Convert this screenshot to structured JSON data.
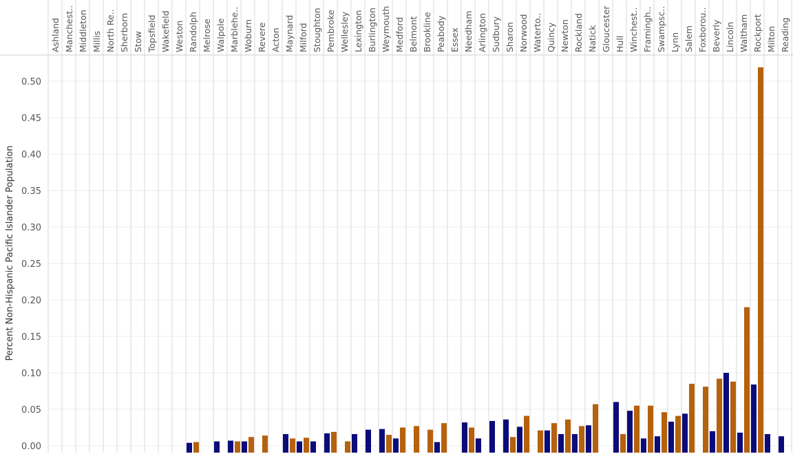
{
  "chart_data": {
    "type": "bar",
    "title": "",
    "xlabel": "",
    "ylabel": "Percent Non-Hispanic Pacific Islander Population",
    "ylim": [
      0,
      0.53
    ],
    "yticks": [
      0.0,
      0.05,
      0.1,
      0.15,
      0.2,
      0.25,
      0.3,
      0.35,
      0.4,
      0.45,
      0.5
    ],
    "ytick_labels": [
      "0.00",
      "0.05",
      "0.10",
      "0.15",
      "0.20",
      "0.25",
      "0.30",
      "0.35",
      "0.40",
      "0.45",
      "0.50"
    ],
    "grid": true,
    "legend": "none",
    "colors": [
      "#0b0b7a",
      "#b5610d"
    ],
    "categories": [
      "Ashland",
      "Manchest..",
      "Middleton",
      "Millis",
      "North Re..",
      "Sherborn",
      "Stow",
      "Topsfield",
      "Wakefield",
      "Weston",
      "Randolph",
      "Melrose",
      "Walpole",
      "Marblehe..",
      "Woburn",
      "Revere",
      "Acton",
      "Maynard",
      "Milford",
      "Stoughton",
      "Pembroke",
      "Wellesley",
      "Lexington",
      "Burlington",
      "Weymouth",
      "Medford",
      "Belmont",
      "Brookline",
      "Peabody",
      "Essex",
      "Needham",
      "Arlington",
      "Sudbury",
      "Sharon",
      "Norwood",
      "Waterto..",
      "Quincy",
      "Newton",
      "Rockland",
      "Natick",
      "Gloucester",
      "Hull",
      "Winchest..",
      "Framingh..",
      "Swampsc..",
      "Lynn",
      "Salem",
      "Foxborou..",
      "Beverly",
      "Lincoln",
      "Waltham",
      "Rockport",
      "Milton",
      "Reading"
    ],
    "series": [
      {
        "values": [
          0,
          0,
          0,
          0,
          0,
          0,
          0,
          0,
          0,
          0,
          0.004,
          0,
          0.006,
          0.007,
          0.006,
          0,
          0,
          0.016,
          0.006,
          0.006,
          0.017,
          0,
          0.016,
          0.022,
          0.023,
          0.01,
          0,
          0,
          0.005,
          0,
          0.032,
          0.01,
          0.034,
          0.036,
          0.026,
          0,
          0.021,
          0.016,
          0.016,
          0.028,
          0,
          0.06,
          0.048,
          0.01,
          0.013,
          0.033,
          0.044,
          0,
          0.02,
          0.1,
          0.018,
          0.084,
          0.016,
          0.013
        ]
      },
      {
        "values": [
          0,
          0,
          0,
          0,
          0,
          0,
          0,
          0,
          0,
          0,
          0.005,
          0,
          0,
          0.006,
          0.012,
          0.014,
          0,
          0.01,
          0.011,
          0,
          0.019,
          0.006,
          0,
          0,
          0.015,
          0.025,
          0.027,
          0.022,
          0.031,
          0,
          0.025,
          0,
          0,
          0.012,
          0.041,
          0.021,
          0.031,
          0.036,
          0.027,
          0.057,
          0,
          0.016,
          0.055,
          0.055,
          0.046,
          0.041,
          0.085,
          0.081,
          0.092,
          0.088,
          0.19,
          0.519,
          0,
          0
        ]
      }
    ]
  }
}
